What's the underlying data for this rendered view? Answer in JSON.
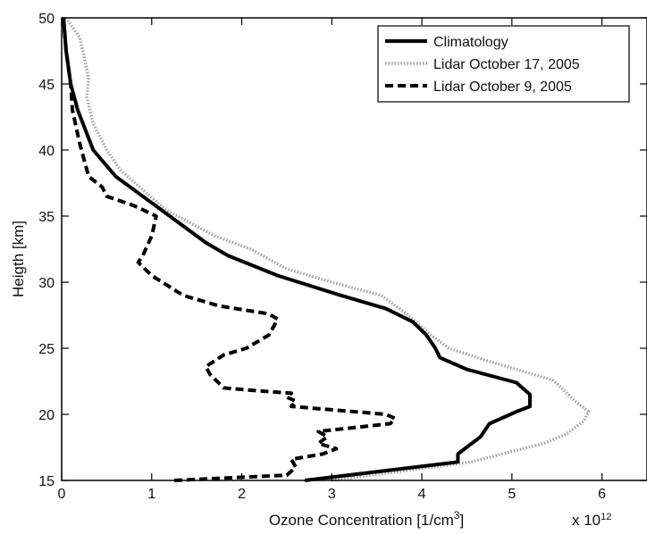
{
  "chart_data": {
    "type": "line",
    "xlabel_main": "Ozone Concentration [1/cm",
    "xlabel_sup": "3",
    "xlabel_end": "]",
    "ylabel": "Heigth [km]",
    "x_multiplier_base": "x 10",
    "x_multiplier_exp": "12",
    "xlim": [
      0,
      6.5
    ],
    "ylim": [
      15,
      50
    ],
    "xticks": [
      0,
      1,
      2,
      3,
      4,
      5,
      6
    ],
    "xtick_labels": [
      "0",
      "1",
      "2",
      "3",
      "4",
      "5",
      "6"
    ],
    "yticks": [
      15,
      20,
      25,
      30,
      35,
      40,
      45,
      50
    ],
    "ytick_labels": [
      "15",
      "20",
      "25",
      "30",
      "35",
      "40",
      "45",
      "50"
    ],
    "grid": false,
    "legend_position": "top-right",
    "series": [
      {
        "name": "Climatology",
        "style": "solid",
        "color": "#000000",
        "points": [
          [
            2.7,
            15.0
          ],
          [
            4.4,
            16.4
          ],
          [
            4.4,
            17.0
          ],
          [
            4.65,
            18.3
          ],
          [
            4.75,
            19.3
          ],
          [
            5.05,
            20.2
          ],
          [
            5.2,
            20.6
          ],
          [
            5.2,
            21.5
          ],
          [
            5.05,
            22.4
          ],
          [
            4.5,
            23.4
          ],
          [
            4.2,
            24.3
          ],
          [
            4.15,
            25.0
          ],
          [
            4.05,
            26.0
          ],
          [
            3.9,
            27.0
          ],
          [
            3.6,
            28.0
          ],
          [
            3.1,
            29.0
          ],
          [
            2.4,
            30.5
          ],
          [
            1.85,
            32.0
          ],
          [
            1.6,
            33.0
          ],
          [
            1.2,
            35.0
          ],
          [
            1.0,
            36.0
          ],
          [
            0.6,
            38.0
          ],
          [
            0.35,
            40.0
          ],
          [
            0.18,
            43.0
          ],
          [
            0.1,
            45.0
          ],
          [
            0.05,
            47.5
          ],
          [
            0.02,
            50.0
          ]
        ]
      },
      {
        "name": "Lidar October 17, 2005",
        "style": "dotted",
        "color": "#a0a0a0",
        "points": [
          [
            3.0,
            15.0
          ],
          [
            4.55,
            16.4
          ],
          [
            5.35,
            17.8
          ],
          [
            5.6,
            18.5
          ],
          [
            5.8,
            19.5
          ],
          [
            5.85,
            20.2
          ],
          [
            5.7,
            21.0
          ],
          [
            5.55,
            22.0
          ],
          [
            5.45,
            22.6
          ],
          [
            4.75,
            24.0
          ],
          [
            4.3,
            25.0
          ],
          [
            4.1,
            26.0
          ],
          [
            3.85,
            27.5
          ],
          [
            3.55,
            29.0
          ],
          [
            3.0,
            30.0
          ],
          [
            2.5,
            31.0
          ],
          [
            2.1,
            32.5
          ],
          [
            1.7,
            33.5
          ],
          [
            1.15,
            35.5
          ],
          [
            0.9,
            37.0
          ],
          [
            0.65,
            38.5
          ],
          [
            0.5,
            40.0
          ],
          [
            0.35,
            42.0
          ],
          [
            0.28,
            44.0
          ],
          [
            0.3,
            45.5
          ],
          [
            0.25,
            47.0
          ],
          [
            0.2,
            48.5
          ],
          [
            0.05,
            50.0
          ]
        ]
      },
      {
        "name": "Lidar October 9, 2005",
        "style": "dashed",
        "color": "#000000",
        "points": [
          [
            1.25,
            15.0
          ],
          [
            2.5,
            15.4
          ],
          [
            2.6,
            16.0
          ],
          [
            2.55,
            16.6
          ],
          [
            2.9,
            17.0
          ],
          [
            3.05,
            17.4
          ],
          [
            2.85,
            17.8
          ],
          [
            2.95,
            18.3
          ],
          [
            2.85,
            18.7
          ],
          [
            3.65,
            19.3
          ],
          [
            3.7,
            19.7
          ],
          [
            3.6,
            20.0
          ],
          [
            2.55,
            20.6
          ],
          [
            2.6,
            21.0
          ],
          [
            2.5,
            21.3
          ],
          [
            2.55,
            21.6
          ],
          [
            2.15,
            21.8
          ],
          [
            1.8,
            22.0
          ],
          [
            1.65,
            23.0
          ],
          [
            1.6,
            23.6
          ],
          [
            1.8,
            24.5
          ],
          [
            2.05,
            25.0
          ],
          [
            2.3,
            26.0
          ],
          [
            2.4,
            27.2
          ],
          [
            2.3,
            27.6
          ],
          [
            1.75,
            28.2
          ],
          [
            1.35,
            29.0
          ],
          [
            1.0,
            30.5
          ],
          [
            0.85,
            31.5
          ],
          [
            0.9,
            32.0
          ],
          [
            1.0,
            33.5
          ],
          [
            1.05,
            35.0
          ],
          [
            0.8,
            35.8
          ],
          [
            0.5,
            36.5
          ],
          [
            0.45,
            37.2
          ],
          [
            0.3,
            38.0
          ],
          [
            0.2,
            40.5
          ],
          [
            0.12,
            43.0
          ],
          [
            0.1,
            45.0
          ],
          [
            0.05,
            47.5
          ],
          [
            0.02,
            50.0
          ]
        ]
      }
    ]
  }
}
